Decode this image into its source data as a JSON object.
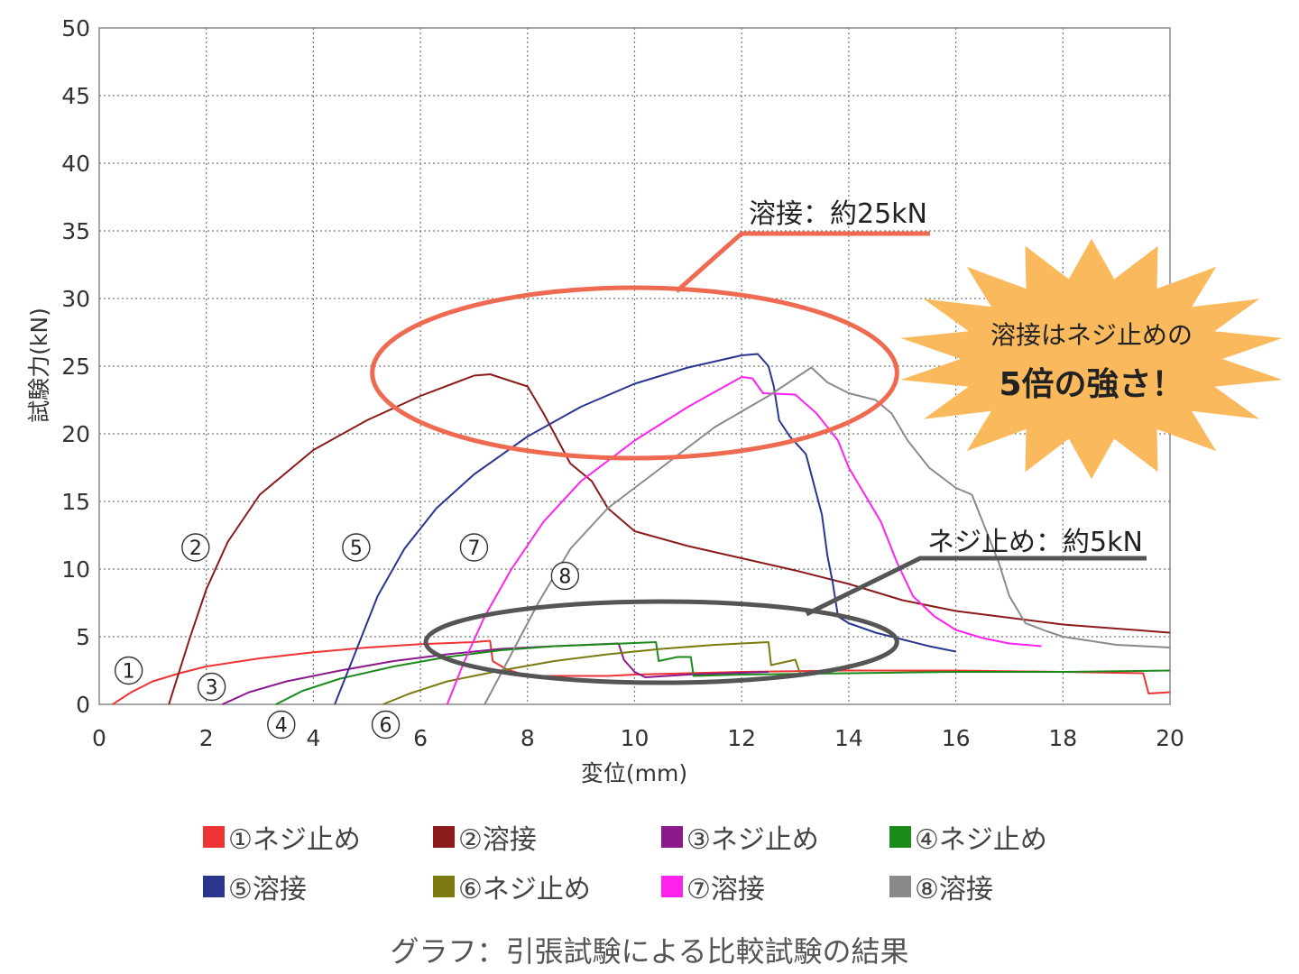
{
  "chart_data": {
    "type": "line",
    "title": "",
    "xlabel": "変位(mm)",
    "ylabel": "試験力(kN)",
    "xlim": [
      0,
      20
    ],
    "ylim": [
      0,
      50
    ],
    "xticks": [
      0,
      2,
      4,
      6,
      8,
      10,
      12,
      14,
      16,
      18,
      20
    ],
    "yticks": [
      0,
      5,
      10,
      15,
      20,
      25,
      30,
      35,
      40,
      45,
      50
    ],
    "grid": true,
    "legend_position": "bottom",
    "series": [
      {
        "name": "①ネジ止め",
        "color": "#ee3333",
        "marker": "①",
        "points": [
          [
            0.25,
            0
          ],
          [
            0.6,
            0.9
          ],
          [
            1.0,
            1.7
          ],
          [
            1.5,
            2.3
          ],
          [
            2.0,
            2.8
          ],
          [
            3.0,
            3.4
          ],
          [
            4.0,
            3.85
          ],
          [
            5.0,
            4.2
          ],
          [
            6.0,
            4.45
          ],
          [
            7.0,
            4.6
          ],
          [
            7.3,
            4.7
          ],
          [
            7.35,
            3.2
          ],
          [
            7.6,
            2.6
          ],
          [
            8.0,
            2.1
          ],
          [
            9.5,
            2.1
          ],
          [
            10.0,
            2.2
          ],
          [
            12.0,
            2.4
          ],
          [
            14.0,
            2.5
          ],
          [
            16.0,
            2.5
          ],
          [
            18.0,
            2.4
          ],
          [
            19.5,
            2.3
          ],
          [
            19.6,
            0.8
          ],
          [
            20.0,
            0.9
          ]
        ]
      },
      {
        "name": "②溶接",
        "color": "#8b1a1a",
        "marker": "②",
        "points": [
          [
            1.3,
            0
          ],
          [
            1.7,
            5
          ],
          [
            2.0,
            8.5
          ],
          [
            2.4,
            12
          ],
          [
            3.0,
            15.5
          ],
          [
            4.0,
            18.8
          ],
          [
            5.0,
            21
          ],
          [
            6.0,
            22.8
          ],
          [
            7.0,
            24.3
          ],
          [
            7.3,
            24.4
          ],
          [
            8.0,
            23.5
          ],
          [
            8.3,
            21.5
          ],
          [
            8.8,
            17.8
          ],
          [
            9.2,
            16.5
          ],
          [
            9.5,
            14.5
          ],
          [
            10.0,
            12.8
          ],
          [
            11.0,
            11.7
          ],
          [
            12.0,
            10.8
          ],
          [
            13.0,
            9.9
          ],
          [
            14.0,
            8.9
          ],
          [
            15.0,
            7.7
          ],
          [
            16.0,
            6.9
          ],
          [
            18.0,
            5.9
          ],
          [
            20.0,
            5.3
          ]
        ]
      },
      {
        "name": "③ネジ止め",
        "color": "#8a1a8a",
        "marker": "③",
        "points": [
          [
            2.3,
            0
          ],
          [
            2.8,
            0.9
          ],
          [
            3.5,
            1.7
          ],
          [
            4.5,
            2.5
          ],
          [
            5.5,
            3.2
          ],
          [
            6.5,
            3.7
          ],
          [
            7.5,
            4.1
          ],
          [
            8.5,
            4.3
          ],
          [
            9.7,
            4.5
          ],
          [
            9.8,
            3.3
          ],
          [
            10.0,
            2.4
          ],
          [
            10.2,
            2.0
          ],
          [
            11.0,
            2.2
          ],
          [
            12.5,
            2.4
          ]
        ]
      },
      {
        "name": "④ネジ止め",
        "color": "#1a8a1a",
        "marker": "④",
        "points": [
          [
            3.3,
            0
          ],
          [
            3.8,
            1.0
          ],
          [
            4.5,
            1.9
          ],
          [
            5.5,
            2.8
          ],
          [
            6.5,
            3.5
          ],
          [
            7.5,
            4.0
          ],
          [
            8.5,
            4.3
          ],
          [
            9.8,
            4.5
          ],
          [
            10.4,
            4.6
          ],
          [
            10.45,
            3.2
          ],
          [
            10.8,
            3.5
          ],
          [
            11.05,
            3.5
          ],
          [
            11.1,
            2.1
          ],
          [
            12.0,
            2.2
          ],
          [
            14.0,
            2.3
          ],
          [
            16.0,
            2.4
          ],
          [
            18.0,
            2.4
          ],
          [
            20.0,
            2.5
          ]
        ]
      },
      {
        "name": "⑤溶接",
        "color": "#2a3590",
        "marker": "⑤",
        "points": [
          [
            4.4,
            0
          ],
          [
            4.8,
            4
          ],
          [
            5.2,
            8
          ],
          [
            5.7,
            11.5
          ],
          [
            6.3,
            14.5
          ],
          [
            7.0,
            17
          ],
          [
            8.0,
            19.8
          ],
          [
            9.0,
            22
          ],
          [
            10.0,
            23.7
          ],
          [
            11.0,
            24.9
          ],
          [
            12.0,
            25.8
          ],
          [
            12.3,
            25.9
          ],
          [
            12.5,
            25.0
          ],
          [
            12.6,
            23.5
          ],
          [
            12.7,
            21
          ],
          [
            12.9,
            19.8
          ],
          [
            13.2,
            18.5
          ],
          [
            13.5,
            14
          ],
          [
            13.6,
            11
          ],
          [
            13.7,
            9
          ],
          [
            13.8,
            6.5
          ],
          [
            14.0,
            6
          ],
          [
            14.5,
            5.3
          ],
          [
            15.0,
            4.8
          ],
          [
            15.5,
            4.3
          ],
          [
            16.0,
            3.9
          ]
        ]
      },
      {
        "name": "⑥ネジ止め",
        "color": "#7a7a10",
        "marker": "⑥",
        "points": [
          [
            5.3,
            0
          ],
          [
            5.8,
            0.8
          ],
          [
            6.5,
            1.7
          ],
          [
            7.5,
            2.5
          ],
          [
            8.5,
            3.2
          ],
          [
            9.5,
            3.7
          ],
          [
            10.5,
            4.1
          ],
          [
            11.5,
            4.4
          ],
          [
            12.5,
            4.6
          ],
          [
            12.55,
            2.9
          ],
          [
            13.0,
            3.3
          ],
          [
            13.1,
            2.2
          ]
        ]
      },
      {
        "name": "⑦溶接",
        "color": "#ff22ee",
        "marker": "⑦",
        "points": [
          [
            6.5,
            0
          ],
          [
            6.8,
            3
          ],
          [
            7.2,
            6.5
          ],
          [
            7.7,
            10
          ],
          [
            8.3,
            13.5
          ],
          [
            9.0,
            16.5
          ],
          [
            10.0,
            19.5
          ],
          [
            11.0,
            22
          ],
          [
            12.0,
            24.2
          ],
          [
            12.2,
            24.1
          ],
          [
            12.4,
            23.0
          ],
          [
            13.0,
            22.9
          ],
          [
            13.4,
            21.5
          ],
          [
            13.8,
            19.5
          ],
          [
            14.0,
            17.5
          ],
          [
            14.3,
            15.5
          ],
          [
            14.6,
            13.5
          ],
          [
            14.9,
            10.5
          ],
          [
            15.2,
            8
          ],
          [
            15.6,
            6.5
          ],
          [
            16.0,
            5.5
          ],
          [
            16.5,
            4.9
          ],
          [
            17.0,
            4.5
          ],
          [
            17.6,
            4.3
          ]
        ]
      },
      {
        "name": "⑧溶接",
        "color": "#8a8a8a",
        "marker": "⑧",
        "points": [
          [
            7.2,
            0
          ],
          [
            7.6,
            3
          ],
          [
            8.2,
            7.5
          ],
          [
            8.8,
            11.5
          ],
          [
            9.5,
            14.5
          ],
          [
            10.5,
            17.5
          ],
          [
            11.5,
            20.5
          ],
          [
            12.5,
            22.8
          ],
          [
            13.3,
            24.9
          ],
          [
            13.6,
            23.8
          ],
          [
            14.0,
            23.0
          ],
          [
            14.5,
            22.5
          ],
          [
            14.8,
            21.5
          ],
          [
            15.1,
            19.5
          ],
          [
            15.5,
            17.5
          ],
          [
            16.0,
            16.0
          ],
          [
            16.3,
            15.5
          ],
          [
            16.5,
            13.5
          ],
          [
            16.8,
            10.5
          ],
          [
            17.0,
            8
          ],
          [
            17.3,
            6
          ],
          [
            17.7,
            5.4
          ],
          [
            18.0,
            5.0
          ],
          [
            19.0,
            4.4
          ],
          [
            20.0,
            4.2
          ]
        ]
      }
    ],
    "point_markers": [
      {
        "label": "①",
        "x": 0.55,
        "y": 2.5
      },
      {
        "label": "②",
        "x": 1.8,
        "y": 11.6
      },
      {
        "label": "③",
        "x": 2.1,
        "y": 1.3
      },
      {
        "label": "④",
        "x": 3.4,
        "y": -1.5
      },
      {
        "label": "⑤",
        "x": 4.8,
        "y": 11.6
      },
      {
        "label": "⑥",
        "x": 5.35,
        "y": -1.5
      },
      {
        "label": "⑦",
        "x": 7.0,
        "y": 11.6
      },
      {
        "label": "⑧",
        "x": 8.7,
        "y": 9.5
      }
    ],
    "annotations": [
      {
        "text": "溶接：約25kN",
        "color": "#ee6a50",
        "ellipse_center": [
          10.0,
          24.5
        ],
        "ellipse_r": [
          4.9,
          6.3
        ]
      },
      {
        "text": "ネジ止め：約5kN",
        "color": "#555555",
        "ellipse_center": [
          10.5,
          4.6
        ],
        "ellipse_r": [
          4.4,
          3.0
        ]
      }
    ]
  },
  "callouts": {
    "weld": "溶接：約25kN",
    "screw": "ネジ止め：約5kN",
    "star_line1": "溶接はネジ止めの",
    "star_line2": "5倍の強さ！"
  },
  "colors": {
    "weld_callout": "#ee6a50",
    "screw_callout": "#555555",
    "star_fill": "#f9b95c"
  },
  "legend": [
    {
      "label": "①ネジ止め",
      "color": "#ee3333"
    },
    {
      "label": "②溶接",
      "color": "#8b1a1a"
    },
    {
      "label": "③ネジ止め",
      "color": "#8a1a8a"
    },
    {
      "label": "④ネジ止め",
      "color": "#1a8a1a"
    },
    {
      "label": "⑤溶接",
      "color": "#2a3590"
    },
    {
      "label": "⑥ネジ止め",
      "color": "#7a7a10"
    },
    {
      "label": "⑦溶接",
      "color": "#ff22ee"
    },
    {
      "label": "⑧溶接",
      "color": "#8a8a8a"
    }
  ],
  "caption": "グラフ：引張試験による比較試験の結果"
}
